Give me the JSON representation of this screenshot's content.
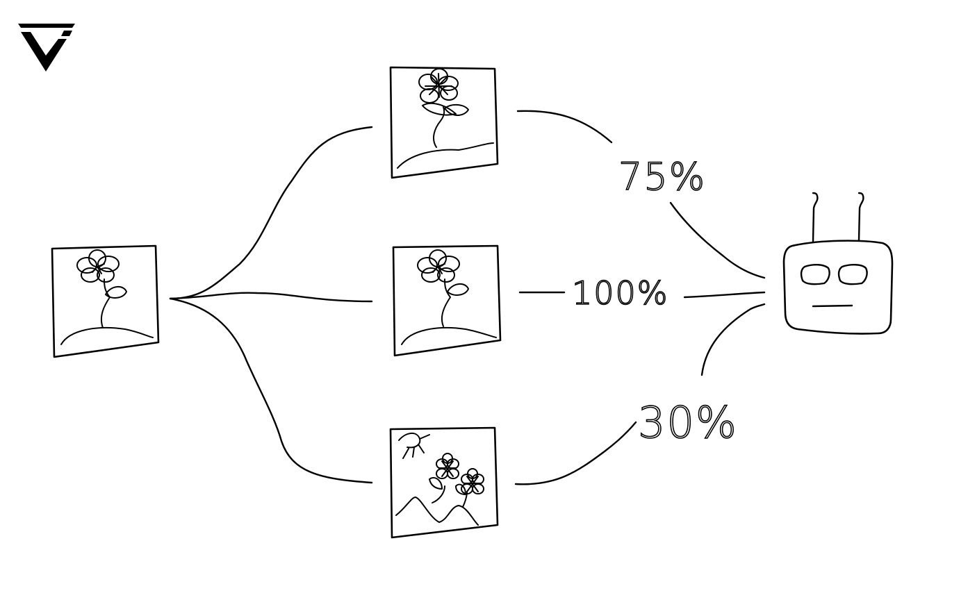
{
  "diagram": {
    "edge_labels": {
      "top": "75%",
      "middle": "100%",
      "bottom": "30%"
    },
    "nodes": [
      {
        "id": "input",
        "icon": "flower-picture-icon"
      },
      {
        "id": "variant-top",
        "icon": "flower-picture-icon"
      },
      {
        "id": "variant-middle",
        "icon": "flower-picture-icon"
      },
      {
        "id": "variant-bottom",
        "icon": "landscape-flowers-sun-picture-icon"
      },
      {
        "id": "robot",
        "icon": "robot-icon"
      }
    ],
    "colors": {
      "ink": "#000000",
      "background": "#ffffff"
    }
  }
}
